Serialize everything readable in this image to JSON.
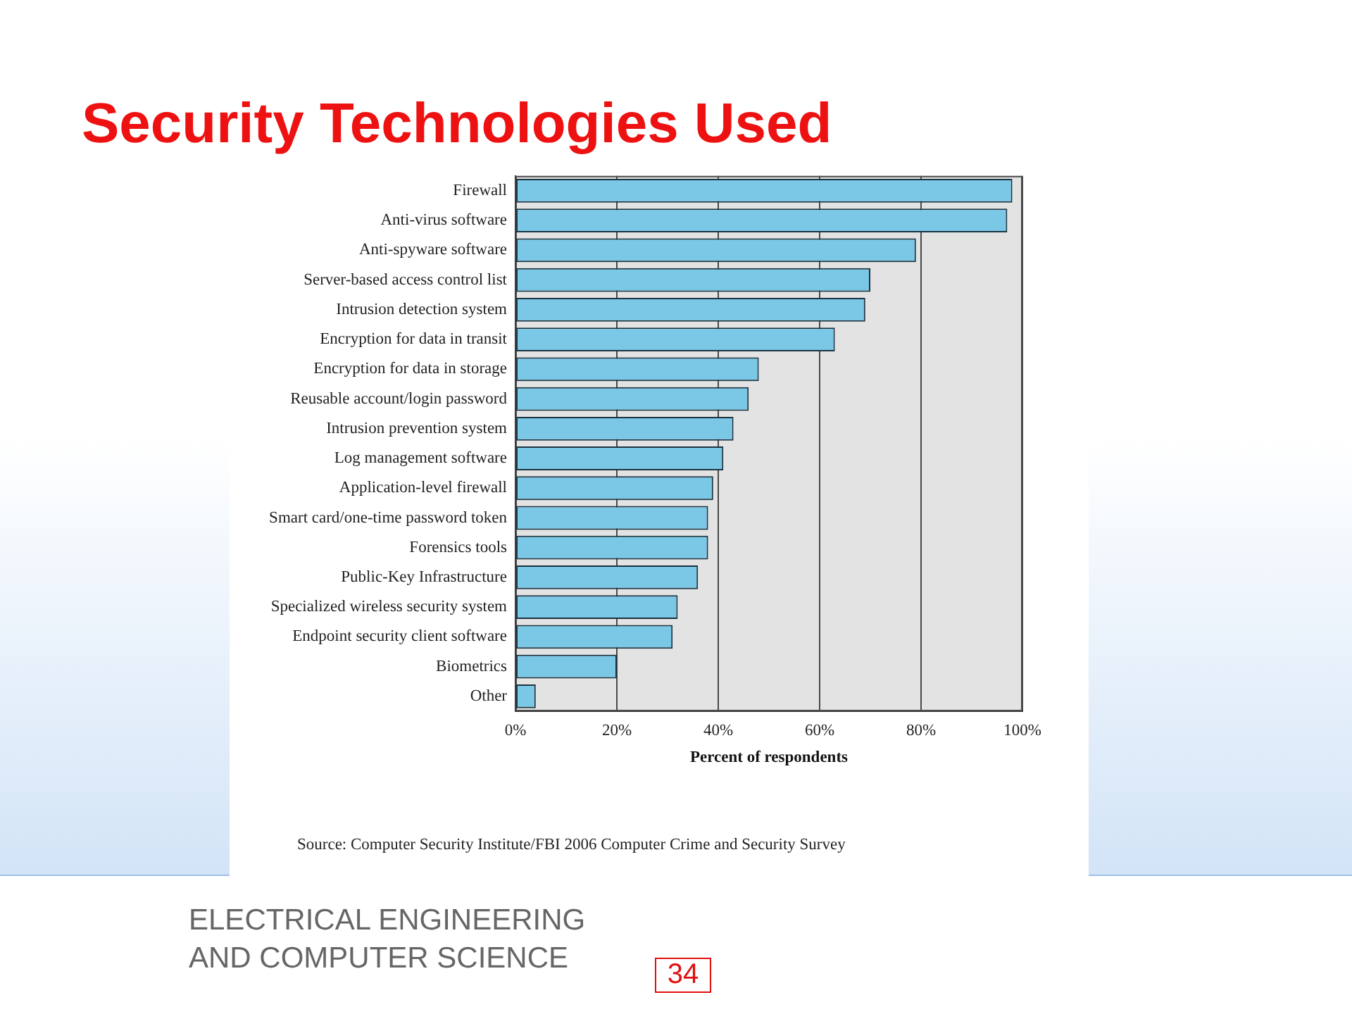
{
  "chart_data": {
    "type": "bar",
    "orientation": "horizontal",
    "title": "Security Technologies Used",
    "xlabel": "Percent of respondents",
    "categories": [
      "Firewall",
      "Anti-virus software",
      "Anti-spyware software",
      "Server-based access control list",
      "Intrusion detection system",
      "Encryption for data in transit",
      "Encryption for data in storage",
      "Reusable account/login password",
      "Intrusion prevention system",
      "Log management software",
      "Application-level firewall",
      "Smart card/one-time password token",
      "Forensics tools",
      "Public-Key Infrastructure",
      "Specialized wireless security system",
      "Endpoint security client software",
      "Biometrics",
      "Other"
    ],
    "values": [
      98,
      97,
      79,
      70,
      69,
      63,
      48,
      46,
      43,
      41,
      39,
      38,
      38,
      36,
      32,
      31,
      20,
      4
    ],
    "color": "#7ac7e6",
    "xlim": [
      0,
      100
    ],
    "xticks": [
      {
        "value": 0,
        "label": "0%"
      },
      {
        "value": 20,
        "label": "20%"
      },
      {
        "value": 40,
        "label": "40%"
      },
      {
        "value": 60,
        "label": "60%"
      },
      {
        "value": 80,
        "label": "80%"
      },
      {
        "value": 100,
        "label": "100%"
      }
    ],
    "grid": "x",
    "annotations": [
      "Source: Computer Security Institute/FBI 2006 Computer Crime and Security Survey",
      "ELECTRICAL ENGINEERING AND COMPUTER SCIENCE",
      "34"
    ]
  }
}
